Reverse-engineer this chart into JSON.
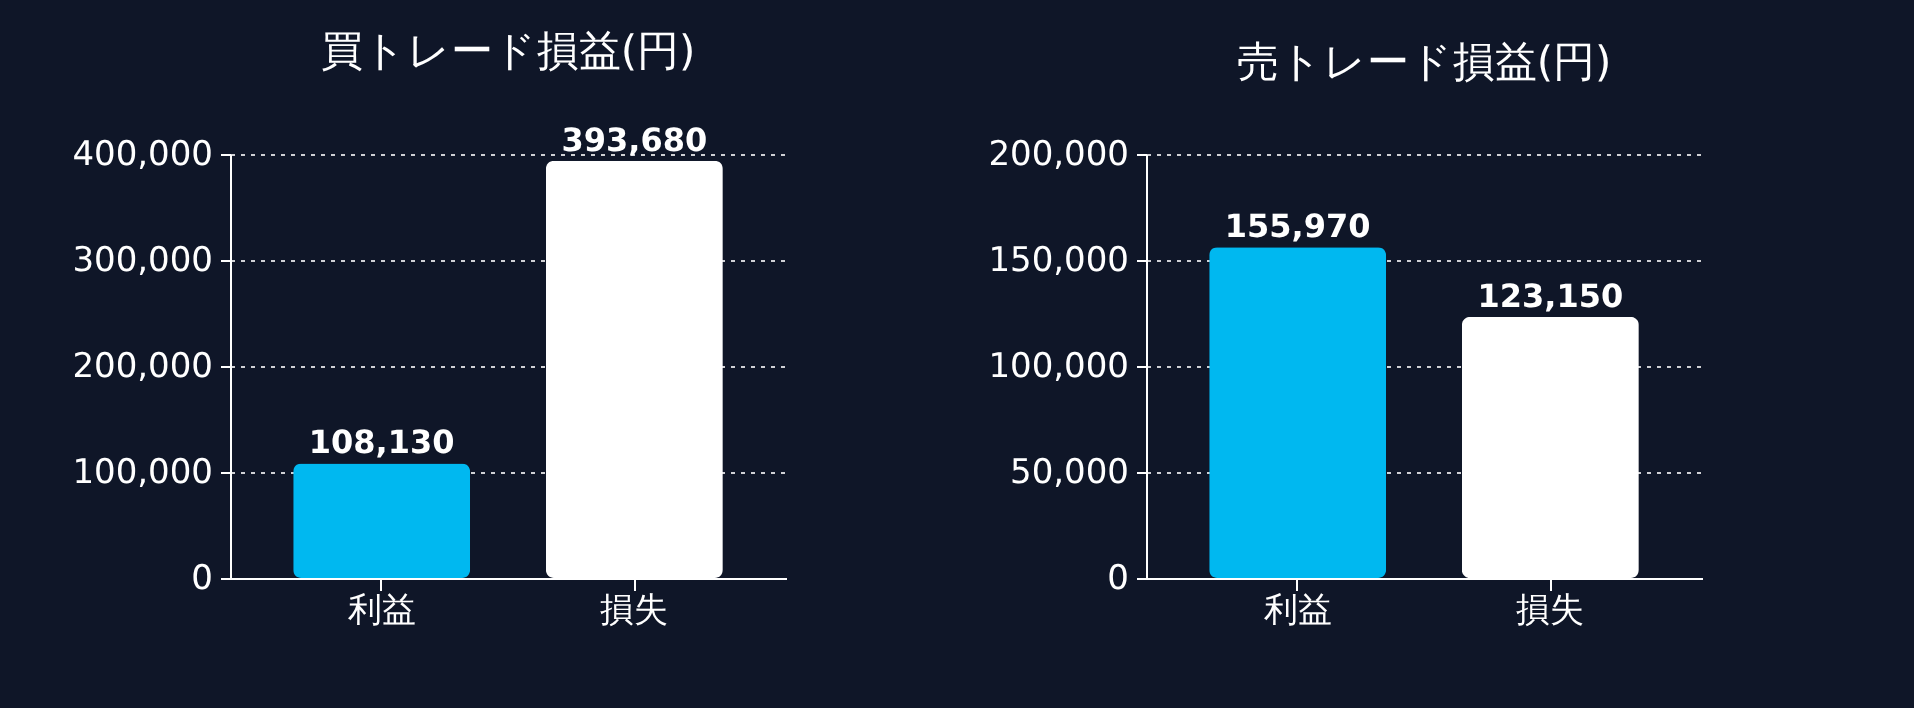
{
  "chart_data": [
    {
      "type": "bar",
      "title": "買トレード損益(円)",
      "categories": [
        "利益",
        "損失"
      ],
      "values": [
        108130,
        393680
      ],
      "value_labels": [
        "108,130",
        "393,680"
      ],
      "colors": [
        "#00b8f0",
        "#ffffff"
      ],
      "ylim": [
        0,
        400000
      ],
      "yticks": [
        0,
        {
          "value": 100000,
          "label": "100,000"
        },
        {
          "value": 200000,
          "label": "200,000"
        },
        {
          "value": 300000,
          "label": "300,000"
        },
        {
          "value": 400000,
          "label": "400,000"
        }
      ],
      "grid": "y"
    },
    {
      "type": "bar",
      "title": "売トレード損益(円)",
      "categories": [
        "利益",
        "損失"
      ],
      "values": [
        155970,
        123150
      ],
      "value_labels": [
        "155,970",
        "123,150"
      ],
      "colors": [
        "#00b8f0",
        "#ffffff"
      ],
      "ylim": [
        0,
        200000
      ],
      "yticks": [
        0,
        {
          "value": 50000,
          "label": "50,000"
        },
        {
          "value": 100000,
          "label": "100,000"
        },
        {
          "value": 150000,
          "label": "150,000"
        },
        {
          "value": 200000,
          "label": "200,000"
        }
      ],
      "grid": "y"
    }
  ]
}
